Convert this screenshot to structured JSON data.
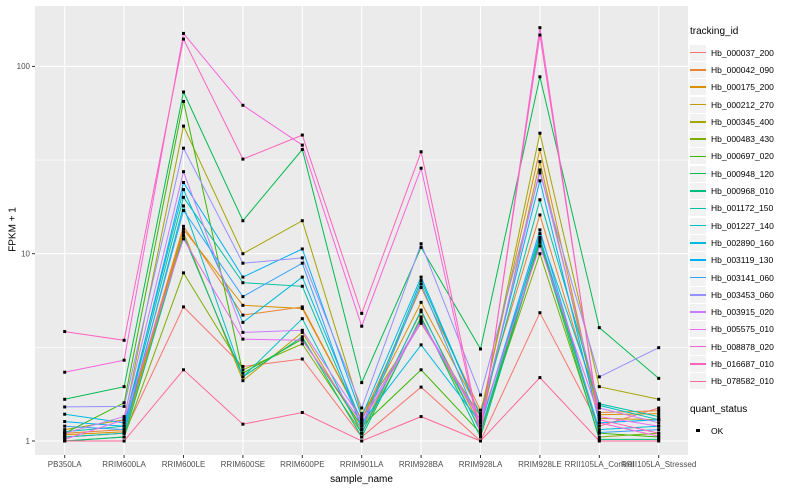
{
  "chart_data": {
    "type": "line",
    "title": "",
    "xlabel": "sample_name",
    "ylabel": "FPKM + 1",
    "y_scale": "log10",
    "y_ticks": [
      1,
      10,
      100
    ],
    "y_tick_labels": [
      "1",
      "10",
      "100"
    ],
    "y_minor_breaks": [
      3.162,
      31.623
    ],
    "ylim": [
      0.85,
      210
    ],
    "grid": "on",
    "panel_bg": "#EBEBEB",
    "grid_color": "#FFFFFF",
    "tick_label_color": "#4D4D4D",
    "point_color": "#000000",
    "point_shape": "square",
    "x_categories": [
      "PB350LA",
      "RRIM600LA",
      "RRIM600LE",
      "RRIM600SE",
      "RRIM600PE",
      "RRIM901LA",
      "RRIM928BA",
      "RRIM928LA",
      "RRIM928LE",
      "RRII105LA_Control",
      "RRII105LA_Stressed"
    ],
    "legend": {
      "title": "tracking_id",
      "position": "right"
    },
    "legend2": {
      "title": "quant_status",
      "items": [
        {
          "label": "OK"
        }
      ]
    },
    "series": [
      {
        "name": "Hb_000037_200",
        "color": "#F8766D",
        "values": [
          1.05,
          1.1,
          5.2,
          2.5,
          2.74,
          1.05,
          1.94,
          1.0,
          4.84,
          1.2,
          1.5
        ]
      },
      {
        "name": "Hb_000042_090",
        "color": "#EA8331",
        "values": [
          1.1,
          1.15,
          14.0,
          4.7,
          5.2,
          1.3,
          6.6,
          1.46,
          16.1,
          1.42,
          1.45
        ]
      },
      {
        "name": "Hb_000175_200",
        "color": "#D89000",
        "values": [
          1.08,
          1.12,
          13.5,
          5.3,
          5.1,
          1.3,
          5.5,
          1.4,
          36.0,
          1.38,
          1.4
        ]
      },
      {
        "name": "Hb_000212_270",
        "color": "#C09B00",
        "values": [
          1.05,
          1.1,
          13.0,
          2.1,
          3.8,
          1.15,
          4.9,
          1.2,
          31.0,
          1.32,
          1.3
        ]
      },
      {
        "name": "Hb_000345_400",
        "color": "#A3A500",
        "values": [
          1.15,
          1.3,
          48.0,
          10.0,
          15.0,
          1.4,
          4.25,
          1.35,
          44.0,
          1.95,
          1.67
        ]
      },
      {
        "name": "Hb_000483_430",
        "color": "#7CAE00",
        "values": [
          1.0,
          1.05,
          7.9,
          2.4,
          3.3,
          1.1,
          4.5,
          1.15,
          10.0,
          1.05,
          1.1
        ]
      },
      {
        "name": "Hb_000697_020",
        "color": "#39B600",
        "values": [
          1.1,
          1.6,
          65.0,
          2.3,
          3.5,
          1.2,
          2.4,
          1.1,
          11.8,
          1.1,
          1.05
        ]
      },
      {
        "name": "Hb_000948_120",
        "color": "#00BB4E",
        "values": [
          1.67,
          1.95,
          73.0,
          15.0,
          36.0,
          2.05,
          10.8,
          3.1,
          88.0,
          4.03,
          2.16
        ]
      },
      {
        "name": "Hb_000968_010",
        "color": "#00BF7D",
        "values": [
          1.0,
          1.05,
          12.5,
          2.2,
          3.6,
          1.05,
          4.6,
          1.05,
          11.5,
          1.02,
          1.02
        ]
      },
      {
        "name": "Hb_001172_150",
        "color": "#00C1A3",
        "values": [
          1.12,
          1.2,
          20.0,
          7.0,
          6.7,
          1.2,
          7.2,
          1.35,
          19.4,
          1.58,
          1.35
        ]
      },
      {
        "name": "Hb_001227_140",
        "color": "#00BFC4",
        "values": [
          1.05,
          1.1,
          18.0,
          2.2,
          4.5,
          1.1,
          5.0,
          1.12,
          12.8,
          1.55,
          1.3
        ]
      },
      {
        "name": "Hb_002890_160",
        "color": "#00BAE0",
        "values": [
          1.39,
          1.25,
          22.0,
          4.3,
          7.5,
          1.25,
          3.26,
          1.25,
          12.2,
          1.15,
          1.2
        ]
      },
      {
        "name": "Hb_003119_130",
        "color": "#00B0F6",
        "values": [
          1.27,
          1.2,
          24.0,
          7.5,
          10.6,
          1.35,
          7.5,
          1.35,
          24.5,
          1.25,
          1.3
        ]
      },
      {
        "name": "Hb_003141_060",
        "color": "#35A2FF",
        "values": [
          1.2,
          1.15,
          17.0,
          5.9,
          8.9,
          1.15,
          6.9,
          1.2,
          13.4,
          1.11,
          1.15
        ]
      },
      {
        "name": "Hb_003453_060",
        "color": "#9590FF",
        "values": [
          1.52,
          1.53,
          36.6,
          8.9,
          9.5,
          1.5,
          11.3,
          1.76,
          27.0,
          2.2,
          3.15
        ]
      },
      {
        "name": "Hb_003915_020",
        "color": "#C77CFF",
        "values": [
          1.1,
          1.35,
          27.4,
          3.8,
          3.9,
          1.3,
          4.4,
          1.3,
          28.0,
          1.5,
          1.25
        ]
      },
      {
        "name": "Hb_005575_010",
        "color": "#E76BF3",
        "values": [
          1.02,
          1.3,
          12.0,
          3.5,
          3.45,
          1.25,
          4.3,
          1.28,
          11.0,
          1.35,
          1.2
        ]
      },
      {
        "name": "Hb_008878_020",
        "color": "#FA62DB",
        "values": [
          2.33,
          2.7,
          150.0,
          62.0,
          38.0,
          4.1,
          28.6,
          1.06,
          161.0,
          1.25,
          1.06
        ]
      },
      {
        "name": "Hb_016687_010",
        "color": "#FF62BC",
        "values": [
          3.84,
          3.45,
          140.0,
          32.0,
          43.0,
          4.8,
          35.0,
          1.1,
          147.0,
          1.3,
          1.1
        ]
      },
      {
        "name": "Hb_078582_010",
        "color": "#FF6A98",
        "values": [
          1.0,
          1.0,
          2.4,
          1.23,
          1.42,
          1.0,
          1.35,
          1.0,
          2.18,
          1.0,
          1.0
        ]
      }
    ]
  }
}
